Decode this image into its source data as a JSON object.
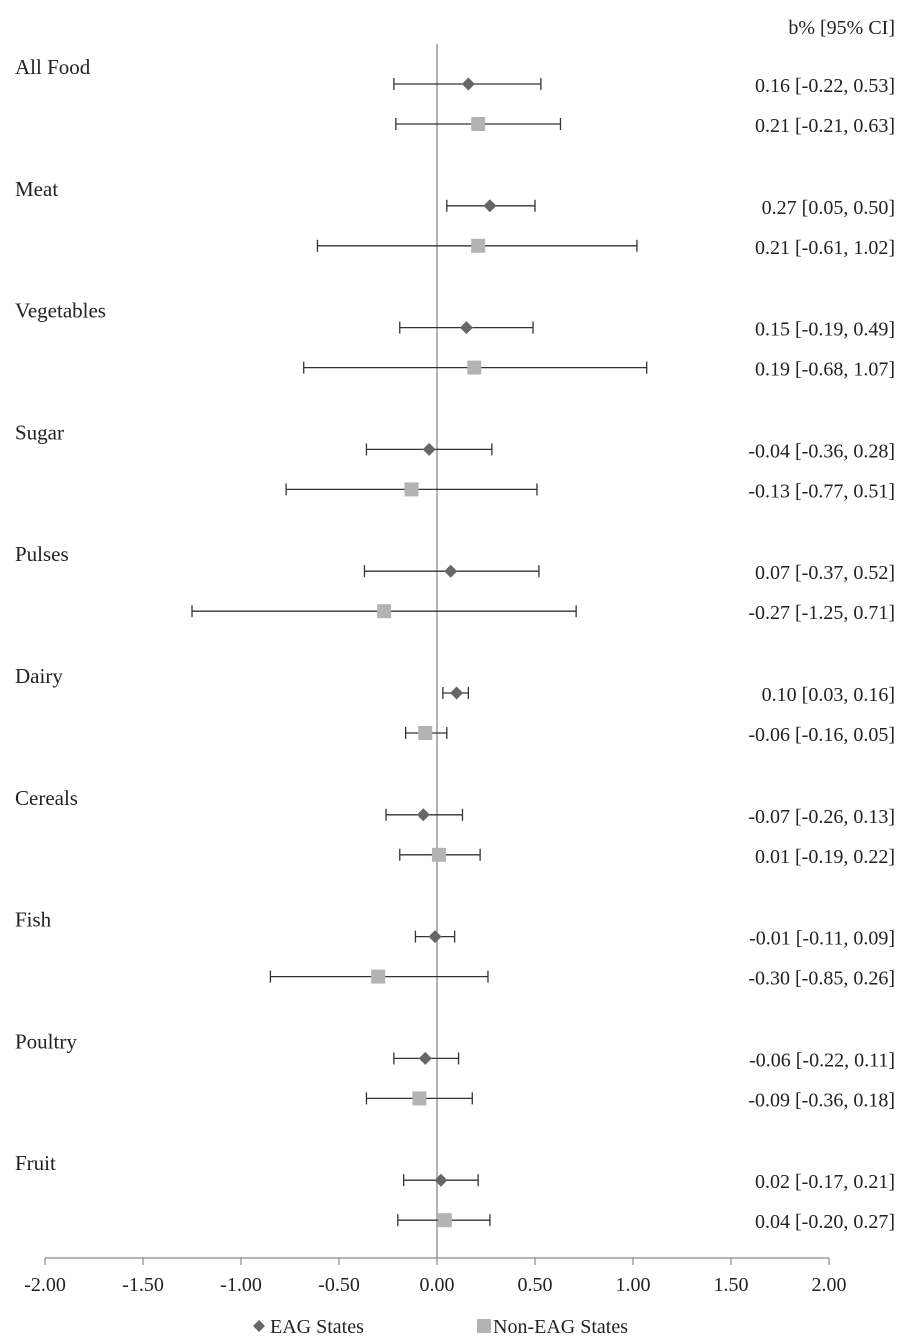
{
  "chart_data": {
    "type": "forest",
    "ci_header": "b% [95% CI]",
    "categories": [
      "All Food",
      "Meat",
      "Vegetables",
      "Sugar",
      "Pulses",
      "Dairy",
      "Cereals",
      "Fish",
      "Poultry",
      "Fruit"
    ],
    "series": [
      {
        "name": "EAG States",
        "marker": "diamond",
        "color": "#666666",
        "points": [
          {
            "est": 0.16,
            "lo": -0.22,
            "hi": 0.53,
            "label": "0.16 [-0.22, 0.53]"
          },
          {
            "est": 0.27,
            "lo": 0.05,
            "hi": 0.5,
            "label": "0.27 [0.05, 0.50]"
          },
          {
            "est": 0.15,
            "lo": -0.19,
            "hi": 0.49,
            "label": "0.15 [-0.19, 0.49]"
          },
          {
            "est": -0.04,
            "lo": -0.36,
            "hi": 0.28,
            "label": "-0.04 [-0.36, 0.28]"
          },
          {
            "est": 0.07,
            "lo": -0.37,
            "hi": 0.52,
            "label": "0.07 [-0.37, 0.52]"
          },
          {
            "est": 0.1,
            "lo": 0.03,
            "hi": 0.16,
            "label": "0.10 [0.03, 0.16]"
          },
          {
            "est": -0.07,
            "lo": -0.26,
            "hi": 0.13,
            "label": "-0.07 [-0.26, 0.13]"
          },
          {
            "est": -0.01,
            "lo": -0.11,
            "hi": 0.09,
            "label": "-0.01 [-0.11, 0.09]"
          },
          {
            "est": -0.06,
            "lo": -0.22,
            "hi": 0.11,
            "label": "-0.06 [-0.22, 0.11]"
          },
          {
            "est": 0.02,
            "lo": -0.17,
            "hi": 0.21,
            "label": "0.02 [-0.17, 0.21]"
          }
        ]
      },
      {
        "name": "Non-EAG States",
        "marker": "square",
        "color": "#b3b3b3",
        "points": [
          {
            "est": 0.21,
            "lo": -0.21,
            "hi": 0.63,
            "label": "0.21 [-0.21, 0.63]"
          },
          {
            "est": 0.21,
            "lo": -0.61,
            "hi": 1.02,
            "label": "0.21 [-0.61, 1.02]"
          },
          {
            "est": 0.19,
            "lo": -0.68,
            "hi": 1.07,
            "label": "0.19 [-0.68, 1.07]"
          },
          {
            "est": -0.13,
            "lo": -0.77,
            "hi": 0.51,
            "label": "-0.13 [-0.77, 0.51]"
          },
          {
            "est": -0.27,
            "lo": -1.25,
            "hi": 0.71,
            "label": "-0.27 [-1.25, 0.71]"
          },
          {
            "est": -0.06,
            "lo": -0.16,
            "hi": 0.05,
            "label": "-0.06 [-0.16, 0.05]"
          },
          {
            "est": 0.01,
            "lo": -0.19,
            "hi": 0.22,
            "label": "0.01 [-0.19, 0.22]"
          },
          {
            "est": -0.3,
            "lo": -0.85,
            "hi": 0.26,
            "label": "-0.30 [-0.85, 0.26]"
          },
          {
            "est": -0.09,
            "lo": -0.36,
            "hi": 0.18,
            "label": "-0.09 [-0.36, 0.18]"
          },
          {
            "est": 0.04,
            "lo": -0.2,
            "hi": 0.27,
            "label": "0.04 [-0.20, 0.27]"
          }
        ]
      }
    ],
    "x_ticks": [
      "-2.00",
      "-1.50",
      "-1.00",
      "-0.50",
      "0.00",
      "0.50",
      "1.00",
      "1.50",
      "2.00"
    ],
    "xlim": [
      -2,
      2
    ],
    "reference_line": 0,
    "legend_position": "bottom-center",
    "title": "",
    "xlabel": "",
    "ylabel": ""
  }
}
